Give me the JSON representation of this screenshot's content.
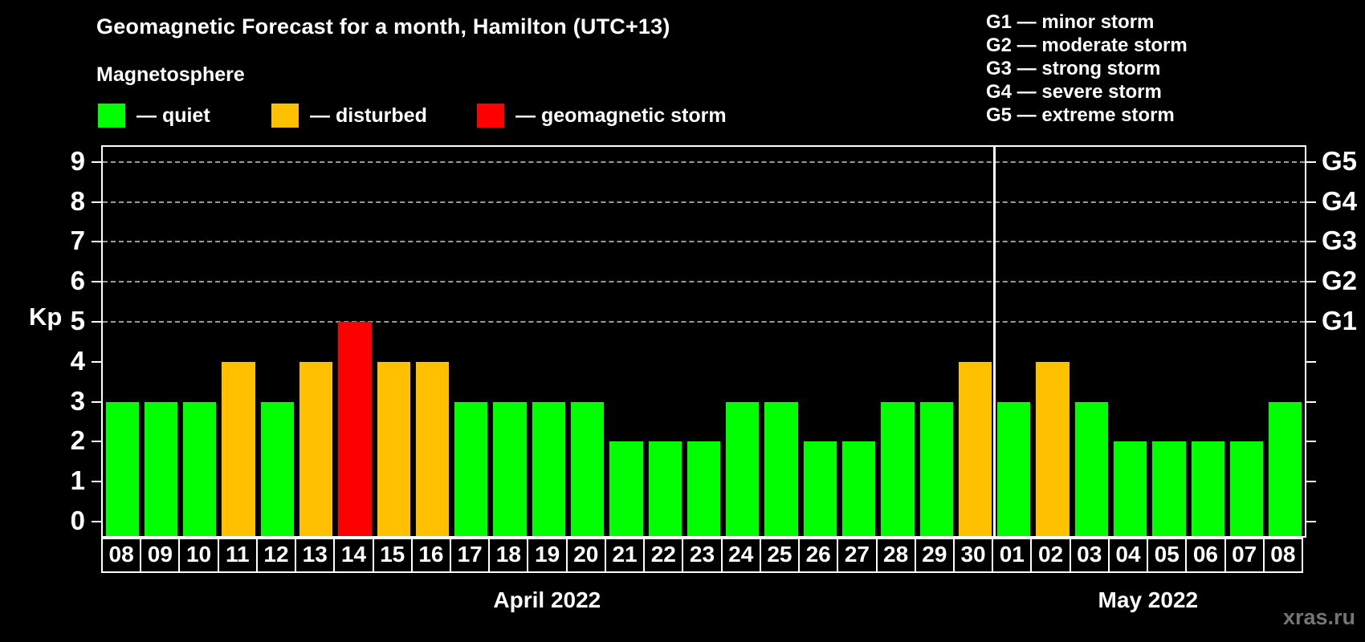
{
  "header": {
    "title": "Geomagnetic Forecast for a month, Hamilton (UTC+13)",
    "subtitle": "Magnetosphere"
  },
  "legend": {
    "items": [
      {
        "label": "— quiet",
        "color": "#00ff00"
      },
      {
        "label": "— disturbed",
        "color": "#ffc000"
      },
      {
        "label": "— geomagnetic storm",
        "color": "#ff0000"
      }
    ]
  },
  "g_legend": {
    "lines": [
      "G1 — minor storm",
      "G2 — moderate storm",
      "G3 — strong storm",
      "G4 — severe storm",
      "G5 — extreme storm"
    ]
  },
  "watermark": "xras.ru",
  "chart_data": {
    "type": "bar",
    "title": "Geomagnetic Forecast for a month, Hamilton (UTC+13)",
    "ylabel": "Kp",
    "ylim": [
      0,
      9
    ],
    "yticks": [
      0,
      1,
      2,
      3,
      4,
      5,
      6,
      7,
      8,
      9
    ],
    "gridlines_at": [
      5,
      6,
      7,
      8,
      9
    ],
    "grid_style": "dashed",
    "categories": [
      "08",
      "09",
      "10",
      "11",
      "12",
      "13",
      "14",
      "15",
      "16",
      "17",
      "18",
      "19",
      "20",
      "21",
      "22",
      "23",
      "24",
      "25",
      "26",
      "27",
      "28",
      "29",
      "30",
      "01",
      "02",
      "03",
      "04",
      "05",
      "06",
      "07",
      "08"
    ],
    "values": [
      3,
      3,
      3,
      4,
      3,
      4,
      5,
      4,
      4,
      3,
      3,
      3,
      3,
      2,
      2,
      2,
      3,
      3,
      2,
      2,
      3,
      3,
      4,
      3,
      4,
      3,
      2,
      2,
      2,
      2,
      3
    ],
    "statuses": [
      "quiet",
      "quiet",
      "quiet",
      "disturbed",
      "quiet",
      "disturbed",
      "storm",
      "disturbed",
      "disturbed",
      "quiet",
      "quiet",
      "quiet",
      "quiet",
      "quiet",
      "quiet",
      "quiet",
      "quiet",
      "quiet",
      "quiet",
      "quiet",
      "quiet",
      "quiet",
      "disturbed",
      "quiet",
      "disturbed",
      "quiet",
      "quiet",
      "quiet",
      "quiet",
      "quiet",
      "quiet"
    ],
    "months": [
      {
        "label": "April 2022",
        "days": 23
      },
      {
        "label": "May 2022",
        "days": 8
      }
    ],
    "right_axis": {
      "labels": [
        "G1",
        "G2",
        "G3",
        "G4",
        "G5"
      ],
      "at_kp": [
        5,
        6,
        7,
        8,
        9
      ]
    },
    "colors": {
      "quiet": "#00ff00",
      "disturbed": "#ffc000",
      "storm": "#ff0000"
    }
  }
}
